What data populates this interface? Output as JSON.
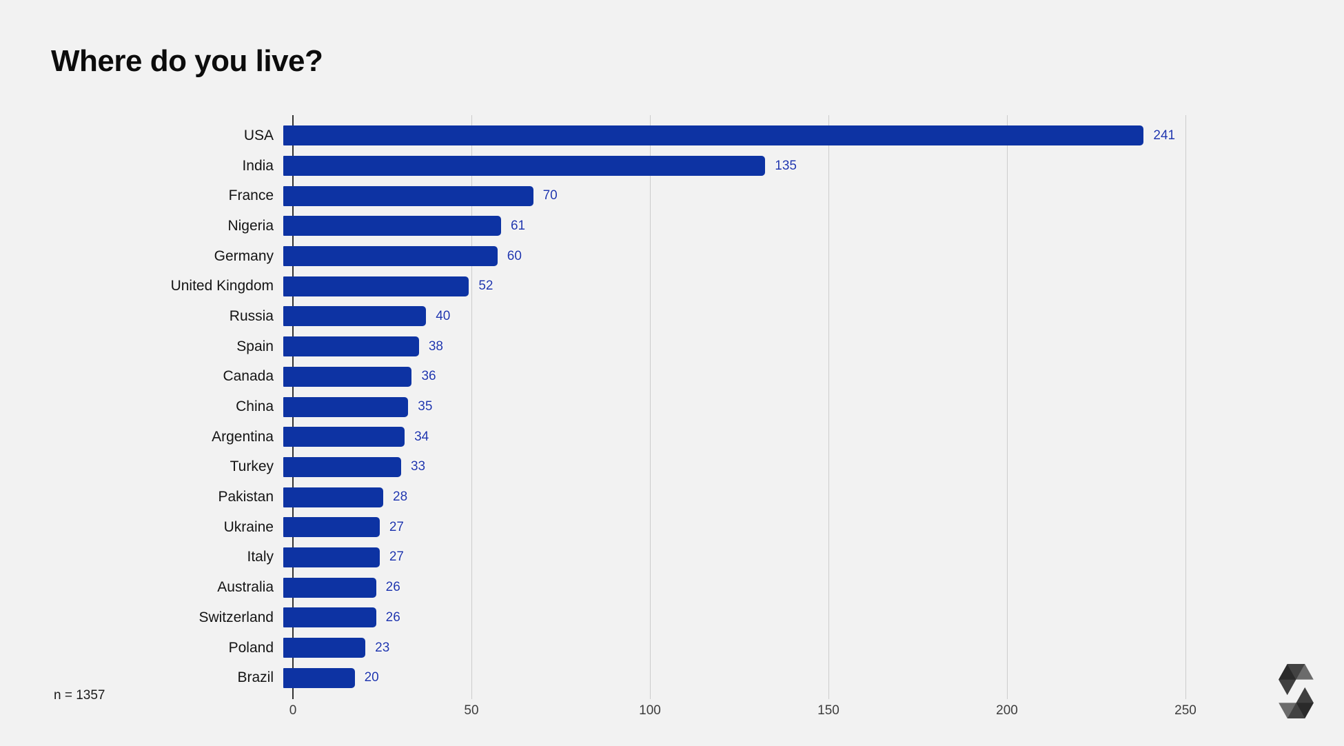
{
  "header": {
    "title": "Where do you live?"
  },
  "footnote": {
    "text": "n = 1357"
  },
  "branding": {
    "logo": "solidity-logo",
    "logo_color": "#111111"
  },
  "colors": {
    "background": "#f2f2f2",
    "bar": "#0d33a3",
    "value_label": "#2137ae",
    "gridline": "#cccccc",
    "axis_line": "#333333",
    "category_label": "#141414",
    "tick_label": "#3d3d3d",
    "title": "#0c0c0c"
  },
  "chart_data": {
    "type": "bar",
    "orientation": "horizontal",
    "title": "Where do you live?",
    "xlabel": "",
    "ylabel": "",
    "categories": [
      "USA",
      "India",
      "France",
      "Nigeria",
      "Germany",
      "United Kingdom",
      "Russia",
      "Spain",
      "Canada",
      "China",
      "Argentina",
      "Turkey",
      "Pakistan",
      "Ukraine",
      "Italy",
      "Australia",
      "Switzerland",
      "Poland",
      "Brazil"
    ],
    "values": [
      241,
      135,
      70,
      61,
      60,
      52,
      40,
      38,
      36,
      35,
      34,
      33,
      28,
      27,
      27,
      26,
      26,
      23,
      20
    ],
    "x_ticks": [
      0,
      50,
      100,
      150,
      200,
      250
    ],
    "xlim": [
      0,
      266
    ],
    "grid": true,
    "value_labels": true,
    "legend": "none",
    "sample_size_note": "n = 1357"
  }
}
